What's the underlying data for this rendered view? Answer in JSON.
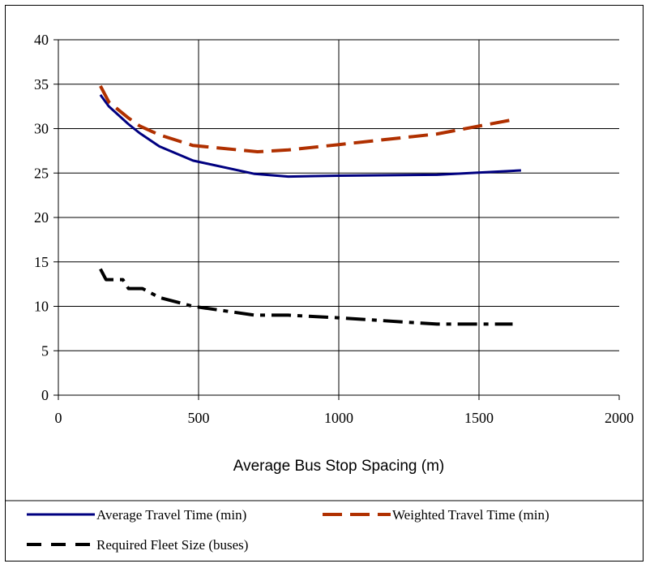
{
  "chart_data": {
    "type": "line",
    "title": "",
    "xlabel": "Average Bus Stop Spacing (m)",
    "ylabel": "",
    "xlim": [
      0,
      2000
    ],
    "ylim": [
      0,
      40
    ],
    "x_ticks": [
      "0",
      "500",
      "1000",
      "1500",
      "2000"
    ],
    "y_ticks": [
      "0",
      "5",
      "10",
      "15",
      "20",
      "25",
      "30",
      "35",
      "40"
    ],
    "grid": "both",
    "legend_position": "bottom",
    "series": [
      {
        "name": "Average Travel Time (min)",
        "color": "#000080",
        "style": "solid",
        "x": [
          150,
          180,
          250,
          290,
          360,
          480,
          700,
          820,
          1000,
          1350,
          1650
        ],
        "y": [
          33.8,
          32.5,
          30.5,
          29.5,
          28.0,
          26.4,
          24.9,
          24.6,
          24.7,
          24.8,
          25.3
        ]
      },
      {
        "name": "Weighted Travel Time (min)",
        "color": "#B03000",
        "style": "dashed",
        "x": [
          150,
          180,
          250,
          290,
          360,
          480,
          710,
          820,
          1000,
          1350,
          1620
        ],
        "y": [
          34.8,
          33.0,
          31.2,
          30.3,
          29.3,
          28.1,
          27.4,
          27.6,
          28.2,
          29.4,
          31.0
        ]
      },
      {
        "name": "Required Fleet Size (buses)",
        "color": "#000000",
        "style": "dash-dot",
        "x": [
          150,
          170,
          230,
          250,
          300,
          360,
          480,
          700,
          820,
          1000,
          1350,
          1620
        ],
        "y": [
          14.2,
          13.0,
          13.0,
          12.0,
          12.0,
          11.0,
          10.0,
          9.0,
          9.0,
          8.7,
          8.0,
          8.0
        ]
      }
    ]
  }
}
